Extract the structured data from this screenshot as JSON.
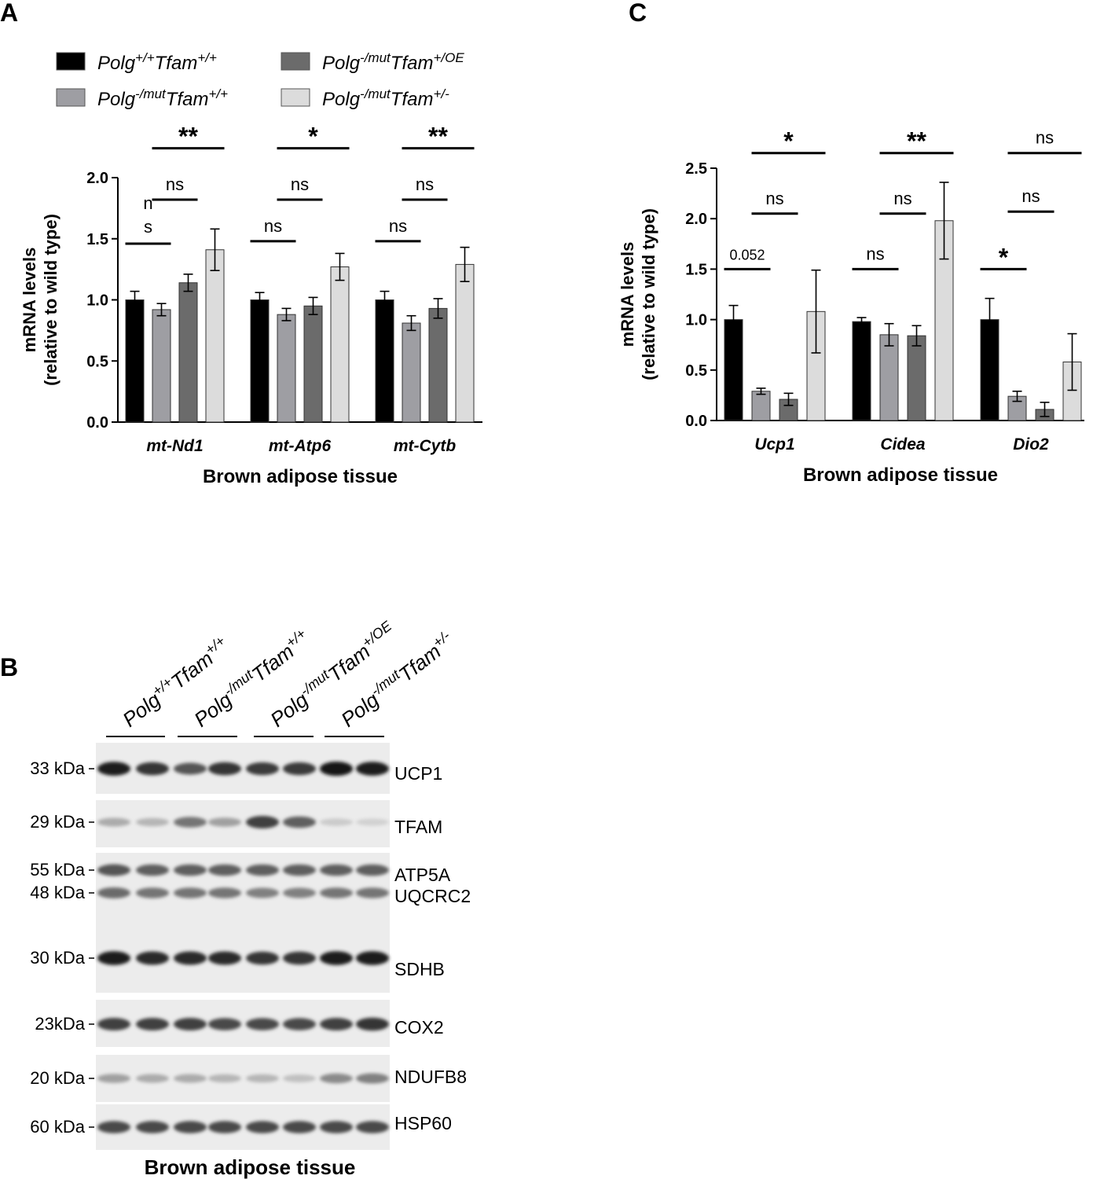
{
  "colors": {
    "wt": "#000000",
    "mut": "#9e9ea3",
    "oe": "#6b6b6b",
    "het": "#dcdcdc",
    "axis": "#000000"
  },
  "panels": {
    "a": "A",
    "b": "B",
    "c": "C"
  },
  "legend": [
    {
      "base": "Polg",
      "sup1": "+/+",
      "mid": "Tfam",
      "sup2": "+/+",
      "color": "wt"
    },
    {
      "base": "Polg",
      "sup1": "-/mut",
      "mid": "Tfam",
      "sup2": "+/OE",
      "color": "oe"
    },
    {
      "base": "Polg",
      "sup1": "-/mut",
      "mid": "Tfam",
      "sup2": "+/+",
      "color": "mut"
    },
    {
      "base": "Polg",
      "sup1": "-/mut",
      "mid": "Tfam",
      "sup2": "+/-",
      "color": "het"
    }
  ],
  "chart_data": [
    {
      "id": "A",
      "type": "bar",
      "ylabel": [
        "mRNA levels",
        "(relative to wild type)"
      ],
      "xlabel": "Brown adipose tissue",
      "ylim": [
        0,
        2.0
      ],
      "yticks": [
        "0.0",
        "0.5",
        "1.0",
        "1.5",
        "2.0"
      ],
      "categories": [
        "mt-Nd1",
        "mt-Atp6",
        "mt-Cytb"
      ],
      "series": [
        {
          "color": "wt",
          "values": [
            1.0,
            1.0,
            1.0
          ],
          "errors": [
            0.07,
            0.06,
            0.07
          ]
        },
        {
          "color": "mut",
          "values": [
            0.92,
            0.88,
            0.81
          ],
          "errors": [
            0.05,
            0.05,
            0.06
          ]
        },
        {
          "color": "oe",
          "values": [
            1.14,
            0.95,
            0.93
          ],
          "errors": [
            0.07,
            0.07,
            0.08
          ]
        },
        {
          "color": "het",
          "values": [
            1.41,
            1.27,
            1.29
          ],
          "errors": [
            0.17,
            0.11,
            0.14
          ]
        }
      ],
      "significance": [
        {
          "label": "n\ns",
          "category": 0,
          "from": 0,
          "to": 1,
          "level": 1.46
        },
        {
          "label": "ns",
          "category": 0,
          "from": 1,
          "to": 2,
          "level": 1.82
        },
        {
          "label": "**",
          "category": 0,
          "from": 1,
          "to": 3,
          "level": 2.24
        },
        {
          "label": "ns",
          "category": 1,
          "from": 0,
          "to": 1,
          "level": 1.48
        },
        {
          "label": "ns",
          "category": 1,
          "from": 1,
          "to": 2,
          "level": 1.82
        },
        {
          "label": "*",
          "category": 1,
          "from": 1,
          "to": 3,
          "level": 2.24
        },
        {
          "label": "ns",
          "category": 2,
          "from": 0,
          "to": 1,
          "level": 1.48
        },
        {
          "label": "ns",
          "category": 2,
          "from": 1,
          "to": 2,
          "level": 1.82
        },
        {
          "label": "**",
          "category": 2,
          "from": 1,
          "to": 3,
          "level": 2.24
        }
      ]
    },
    {
      "id": "C",
      "type": "bar",
      "ylabel": [
        "mRNA levels",
        "(relative to wild type)"
      ],
      "xlabel": "Brown adipose tissue",
      "ylim": [
        0,
        2.5
      ],
      "yticks": [
        "0.0",
        "0.5",
        "1.0",
        "1.5",
        "2.0",
        "2.5"
      ],
      "categories": [
        "Ucp1",
        "Cidea",
        "Dio2"
      ],
      "series": [
        {
          "color": "wt",
          "values": [
            1.0,
            0.98,
            1.0
          ],
          "errors": [
            0.14,
            0.04,
            0.21
          ]
        },
        {
          "color": "mut",
          "values": [
            0.29,
            0.85,
            0.24
          ],
          "errors": [
            0.03,
            0.11,
            0.05
          ]
        },
        {
          "color": "oe",
          "values": [
            0.21,
            0.84,
            0.11
          ],
          "errors": [
            0.06,
            0.1,
            0.07
          ]
        },
        {
          "color": "het",
          "values": [
            1.08,
            1.98,
            0.58
          ],
          "errors": [
            0.41,
            0.38,
            0.28
          ]
        }
      ],
      "significance": [
        {
          "label": "0.052",
          "category": 0,
          "from": 0,
          "to": 1,
          "level": 1.5
        },
        {
          "label": "ns",
          "category": 0,
          "from": 1,
          "to": 2,
          "level": 2.05
        },
        {
          "label": "*",
          "category": 0,
          "from": 1,
          "to": 3,
          "level": 2.65
        },
        {
          "label": "ns",
          "category": 1,
          "from": 0,
          "to": 1,
          "level": 1.5
        },
        {
          "label": "ns",
          "category": 1,
          "from": 1,
          "to": 2,
          "level": 2.05
        },
        {
          "label": "**",
          "category": 1,
          "from": 1,
          "to": 3,
          "level": 2.65
        },
        {
          "label": "*",
          "category": 2,
          "from": 0,
          "to": 1,
          "level": 1.5
        },
        {
          "label": "ns",
          "category": 2,
          "from": 1,
          "to": 2,
          "level": 2.07
        },
        {
          "label": "ns",
          "category": 2,
          "from": 1,
          "to": 3,
          "level": 2.65
        }
      ]
    }
  ],
  "blot": {
    "title": "Brown adipose tissue",
    "lanes": [
      {
        "base": "Polg",
        "sup1": "+/+",
        "mid": "Tfam",
        "sup2": "+/+"
      },
      {
        "base": "Polg",
        "sup1": "-/mut",
        "mid": "Tfam",
        "sup2": "+/+"
      },
      {
        "base": "Polg",
        "sup1": "-/mut",
        "mid": "Tfam",
        "sup2": "+/OE"
      },
      {
        "base": "Polg",
        "sup1": "-/mut",
        "mid": "Tfam",
        "sup2": "+/-"
      }
    ],
    "markers": [
      "33 kDa",
      "29 kDa",
      "55 kDa",
      "48 kDa",
      "30 kDa",
      "23kDa",
      "20 kDa",
      "60 kDa"
    ],
    "proteins": [
      "UCP1",
      "TFAM",
      "ATP5A",
      "UQCRC2",
      "SDHB",
      "COX2",
      "NDUFB8",
      "HSP60"
    ],
    "band_intensity": {
      "UCP1": [
        0.95,
        0.85,
        0.7,
        0.85,
        0.82,
        0.82,
        1.0,
        0.95
      ],
      "TFAM": [
        0.3,
        0.25,
        0.55,
        0.35,
        0.8,
        0.65,
        0.15,
        0.12
      ],
      "ATP5A": [
        0.7,
        0.65,
        0.65,
        0.65,
        0.65,
        0.65,
        0.65,
        0.65
      ],
      "UQCRC2": [
        0.6,
        0.55,
        0.55,
        0.55,
        0.5,
        0.5,
        0.55,
        0.55
      ],
      "SDHB": [
        0.95,
        0.9,
        0.9,
        0.9,
        0.85,
        0.85,
        0.95,
        0.95
      ],
      "COX2": [
        0.8,
        0.8,
        0.8,
        0.75,
        0.75,
        0.75,
        0.8,
        0.85
      ],
      "NDUFB8": [
        0.35,
        0.3,
        0.3,
        0.25,
        0.25,
        0.2,
        0.45,
        0.5
      ],
      "HSP60": [
        0.75,
        0.75,
        0.75,
        0.75,
        0.75,
        0.75,
        0.75,
        0.75
      ]
    }
  }
}
